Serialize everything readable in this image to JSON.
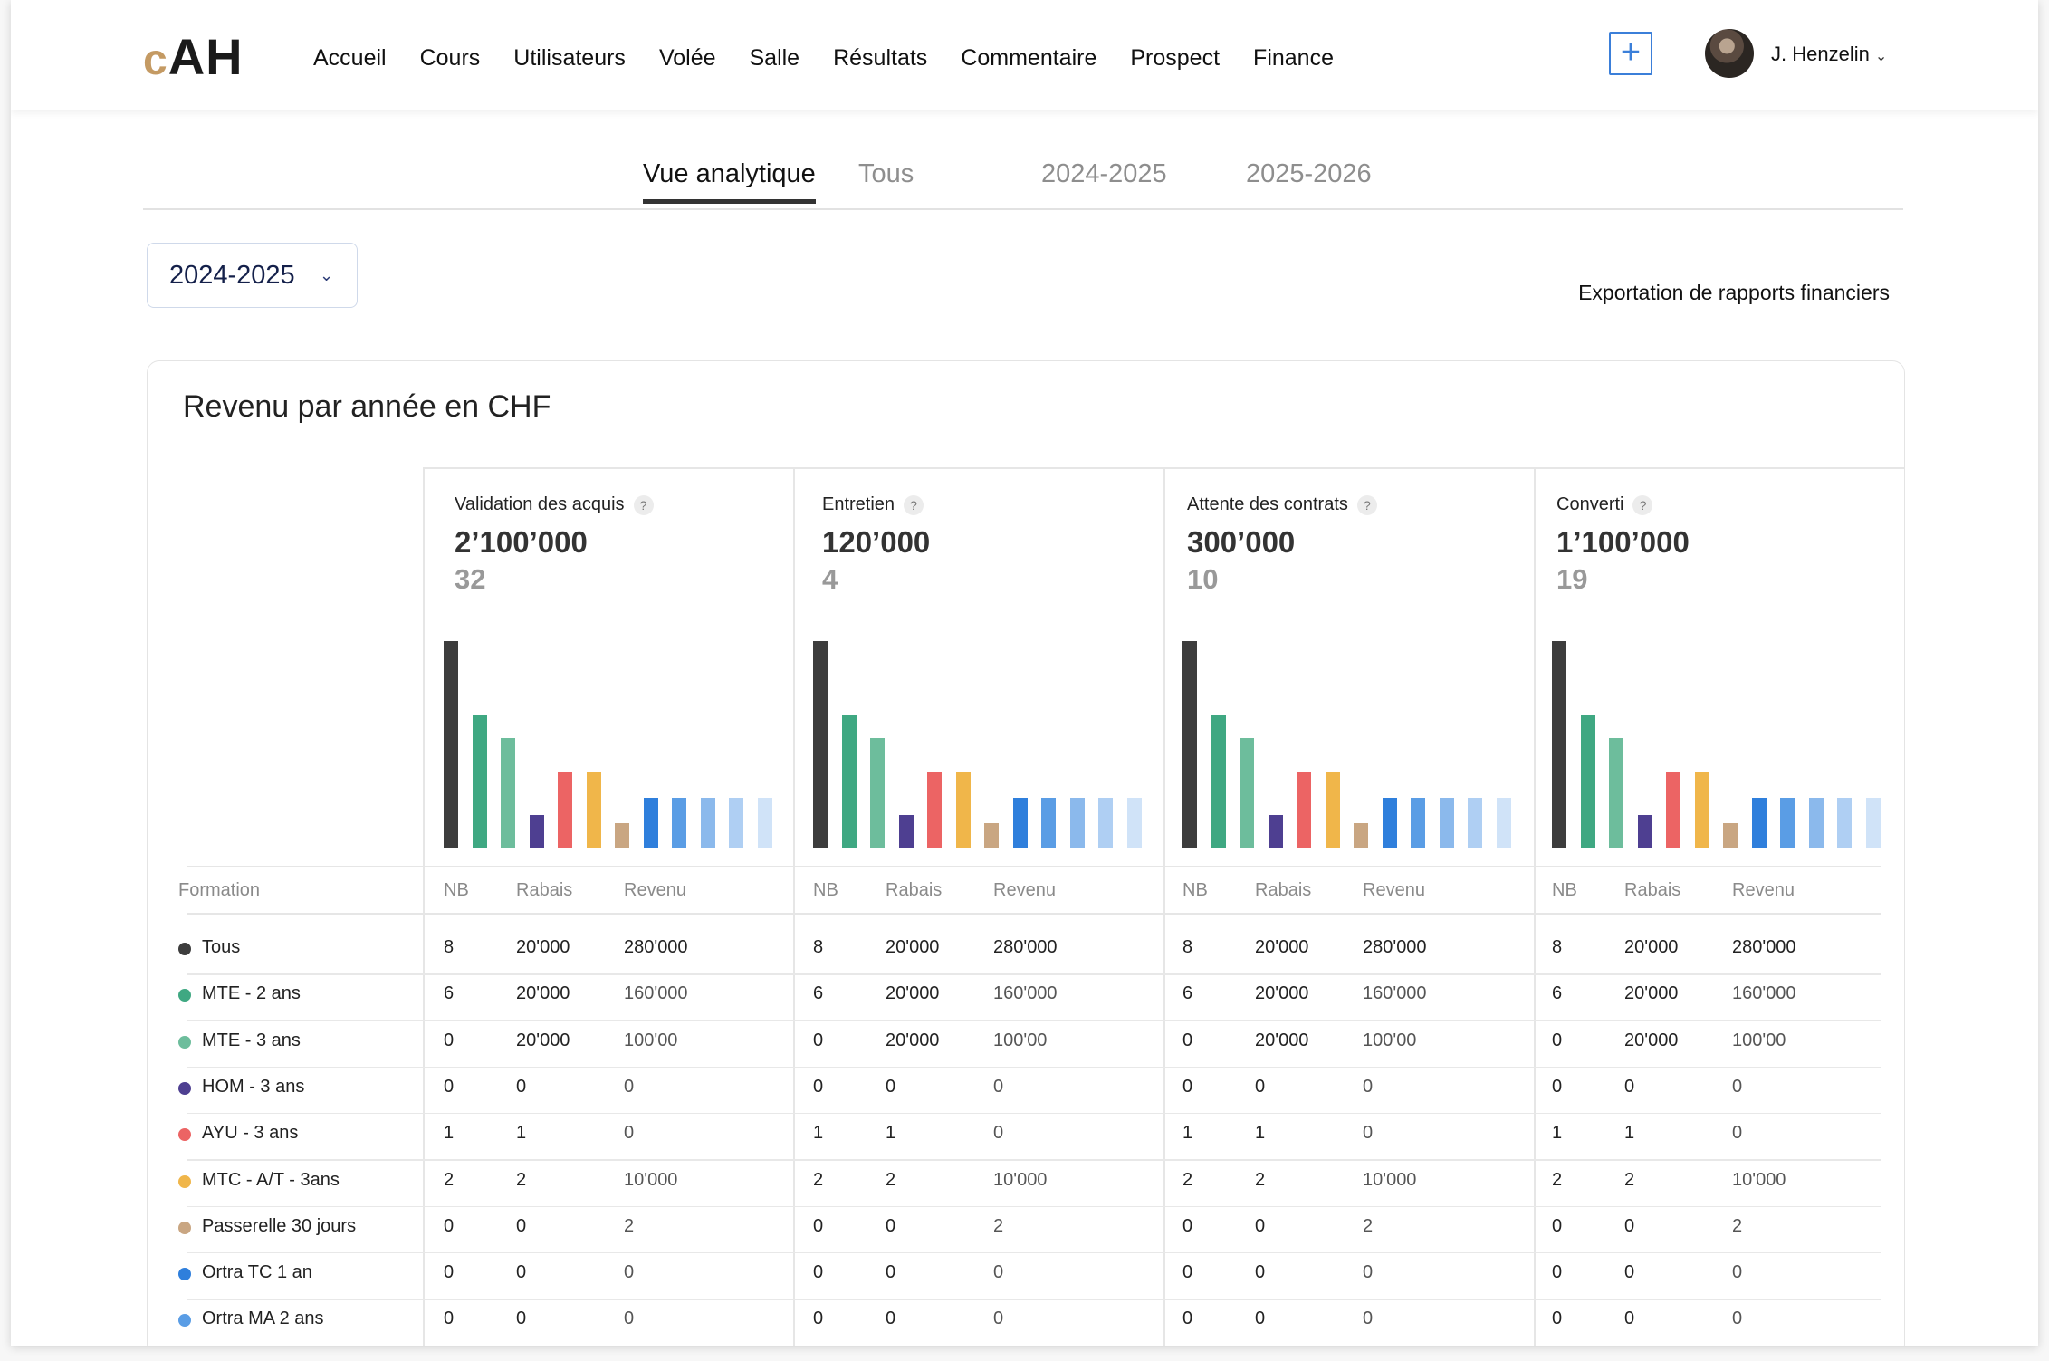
{
  "logo": {
    "c": "c",
    "rest": "AH"
  },
  "nav": [
    "Accueil",
    "Cours",
    "Utilisateurs",
    "Volée",
    "Salle",
    "Résultats",
    "Commentaire",
    "Prospect",
    "Finance"
  ],
  "header": {
    "add_label": "+",
    "user_name": "J. Henzelin",
    "user_chevron": "⌄"
  },
  "tabs": [
    {
      "label": "Vue analytique",
      "active": true
    },
    {
      "label": "Tous",
      "active": false
    },
    {
      "label": "2024-2025",
      "active": false
    },
    {
      "label": "2025-2026",
      "active": false
    }
  ],
  "year_select": {
    "value": "2024-2025",
    "chevron": "⌄"
  },
  "export_label": "Exportation de rapports financiers",
  "card": {
    "title": "Revenu par année en CHF",
    "help_icon": "?"
  },
  "table": {
    "formation_header": "Formation",
    "column_headers": [
      "NB",
      "Rabais",
      "Revenu"
    ],
    "rows": [
      {
        "label": "Tous",
        "color": "#3d3d3d",
        "cells": [
          "8",
          "20'000",
          "280'000"
        ]
      },
      {
        "label": "MTE - 2 ans",
        "color": "#3fa882",
        "cells": [
          "6",
          "20'000",
          "160'000"
        ]
      },
      {
        "label": "MTE - 3 ans",
        "color": "#6dbd9c",
        "cells": [
          "0",
          "20'000",
          "100'00"
        ]
      },
      {
        "label": "HOM - 3 ans",
        "color": "#4e3f91",
        "cells": [
          "0",
          "0",
          "0"
        ]
      },
      {
        "label": "AYU - 3 ans",
        "color": "#ec6464",
        "cells": [
          "1",
          "1",
          "0"
        ]
      },
      {
        "label": "MTC - A/T - 3ans",
        "color": "#f0b64a",
        "cells": [
          "2",
          "2",
          "10'000"
        ]
      },
      {
        "label": "Passerelle 30 jours",
        "color": "#c9a682",
        "cells": [
          "0",
          "0",
          "2"
        ]
      },
      {
        "label": "Ortra TC 1 an",
        "color": "#2f7fdc",
        "cells": [
          "0",
          "0",
          "0"
        ]
      },
      {
        "label": "Ortra MA 2 ans",
        "color": "#5a9de5",
        "cells": [
          "0",
          "0",
          "0"
        ]
      }
    ]
  },
  "chart_data": [
    {
      "type": "bar",
      "title": "Validation des acquis",
      "total": "2’100’000",
      "count": "32",
      "values": [
        10,
        6.4,
        5.3,
        1.6,
        3.7,
        3.7,
        1.2,
        2.4,
        2.4,
        2.4,
        2.4,
        2.4
      ],
      "colors": [
        "#3d3d3d",
        "#3fa882",
        "#6dbd9c",
        "#4e3f91",
        "#ec6464",
        "#f0b64a",
        "#c9a682",
        "#2f7fdc",
        "#5a9de5",
        "#8bb9ec",
        "#afcff3",
        "#d0e3f8"
      ]
    },
    {
      "type": "bar",
      "title": "Entretien",
      "total": "120’000",
      "count": "4",
      "values": [
        10,
        6.4,
        5.3,
        1.6,
        3.7,
        3.7,
        1.2,
        2.4,
        2.4,
        2.4,
        2.4,
        2.4
      ],
      "colors": [
        "#3d3d3d",
        "#3fa882",
        "#6dbd9c",
        "#4e3f91",
        "#ec6464",
        "#f0b64a",
        "#c9a682",
        "#2f7fdc",
        "#5a9de5",
        "#8bb9ec",
        "#afcff3",
        "#d0e3f8"
      ]
    },
    {
      "type": "bar",
      "title": "Attente des contrats",
      "total": "300’000",
      "count": "10",
      "values": [
        10,
        6.4,
        5.3,
        1.6,
        3.7,
        3.7,
        1.2,
        2.4,
        2.4,
        2.4,
        2.4,
        2.4
      ],
      "colors": [
        "#3d3d3d",
        "#3fa882",
        "#6dbd9c",
        "#4e3f91",
        "#ec6464",
        "#f0b64a",
        "#c9a682",
        "#2f7fdc",
        "#5a9de5",
        "#8bb9ec",
        "#afcff3",
        "#d0e3f8"
      ]
    },
    {
      "type": "bar",
      "title": "Converti",
      "total": "1’100’000",
      "count": "19",
      "values": [
        10,
        6.4,
        5.3,
        1.6,
        3.7,
        3.7,
        1.2,
        2.4,
        2.4,
        2.4,
        2.4,
        2.4
      ],
      "colors": [
        "#3d3d3d",
        "#3fa882",
        "#6dbd9c",
        "#4e3f91",
        "#ec6464",
        "#f0b64a",
        "#c9a682",
        "#2f7fdc",
        "#5a9de5",
        "#8bb9ec",
        "#afcff3",
        "#d0e3f8"
      ]
    }
  ]
}
